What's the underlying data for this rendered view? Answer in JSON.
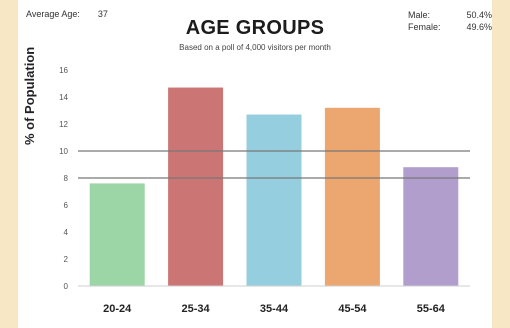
{
  "chart_data": {
    "type": "bar",
    "title": "AGE GROUPS",
    "subtitle": "Based on a poll of 4,000 visitors per month",
    "ylabel": "% of Population",
    "xlabel": "",
    "categories": [
      "20-24",
      "25-34",
      "35-44",
      "45-54",
      "55-64"
    ],
    "values": [
      7.6,
      14.7,
      12.7,
      13.2,
      8.8
    ],
    "colors": [
      "#9dd6a6",
      "#cc7575",
      "#95cede",
      "#eca66f",
      "#b29ecd"
    ],
    "ylim": [
      0,
      16
    ],
    "yticks": [
      0,
      2,
      4,
      6,
      8,
      10,
      12,
      14,
      16
    ],
    "reference_lines": [
      8,
      10
    ],
    "grid": false,
    "legend": "none"
  },
  "info": {
    "average_age_label": "Average Age:",
    "average_age_value": "37"
  },
  "stats": [
    {
      "label": "Male:",
      "value": "50.4%"
    },
    {
      "label": "Female:",
      "value": "49.6%"
    }
  ]
}
